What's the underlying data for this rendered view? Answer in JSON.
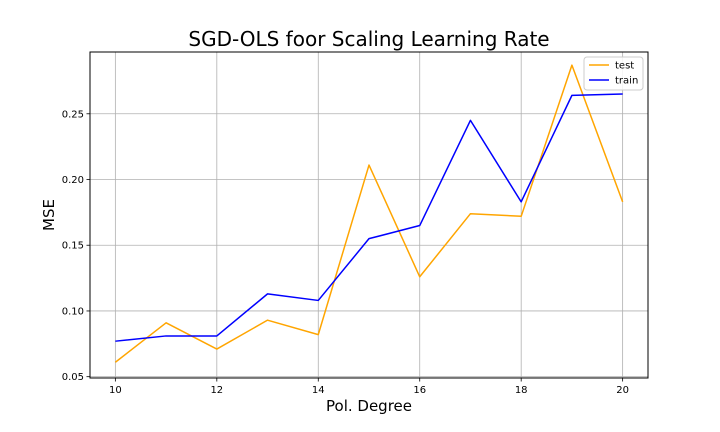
{
  "chart_data": {
    "type": "line",
    "title": "SGD-OLS foor Scaling Learning Rate",
    "xlabel": "Pol. Degree",
    "ylabel": "MSE",
    "x": [
      10,
      11,
      12,
      13,
      14,
      15,
      16,
      17,
      18,
      19,
      20
    ],
    "xlim": [
      9.5,
      20.5
    ],
    "ylim": [
      0.049,
      0.297
    ],
    "xticks": [
      "10",
      "12",
      "14",
      "16",
      "18",
      "20"
    ],
    "yticks": [
      "0.05",
      "0.10",
      "0.15",
      "0.20",
      "0.25"
    ],
    "grid": true,
    "legend_position": "top-right",
    "series": [
      {
        "name": "test",
        "color": "#ffa500",
        "values": [
          0.061,
          0.091,
          0.071,
          0.093,
          0.082,
          0.211,
          0.126,
          0.174,
          0.172,
          0.287,
          0.183
        ]
      },
      {
        "name": "train",
        "color": "#0000ff",
        "values": [
          0.077,
          0.081,
          0.081,
          0.113,
          0.108,
          0.155,
          0.165,
          0.245,
          0.183,
          0.264,
          0.265
        ]
      }
    ]
  }
}
